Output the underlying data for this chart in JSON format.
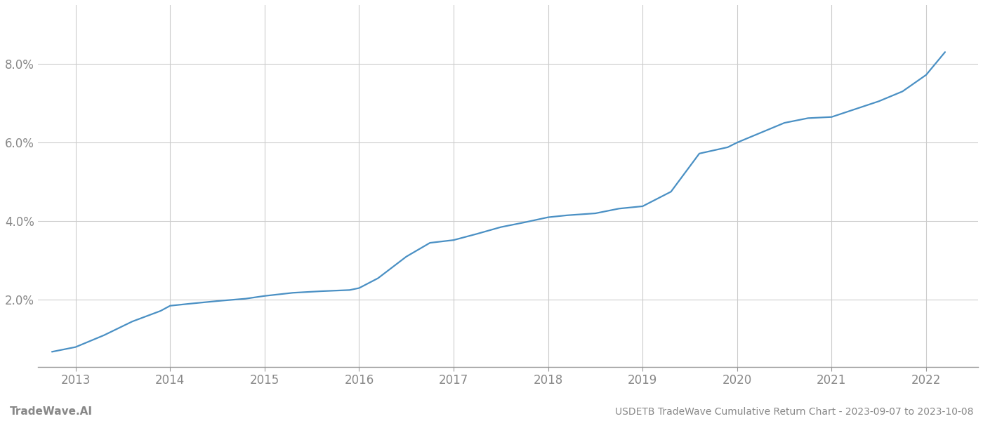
{
  "title": "USDETB TradeWave Cumulative Return Chart - 2023-09-07 to 2023-10-08",
  "watermark": "TradeWave.AI",
  "line_color": "#4a90c4",
  "background_color": "#ffffff",
  "grid_color": "#cccccc",
  "x_years": [
    2013,
    2014,
    2015,
    2016,
    2017,
    2018,
    2019,
    2020,
    2021,
    2022
  ],
  "x_values": [
    2012.75,
    2013.0,
    2013.3,
    2013.6,
    2013.9,
    2014.0,
    2014.2,
    2014.5,
    2014.8,
    2015.0,
    2015.3,
    2015.6,
    2015.9,
    2016.0,
    2016.2,
    2016.5,
    2016.75,
    2017.0,
    2017.25,
    2017.5,
    2017.75,
    2018.0,
    2018.2,
    2018.5,
    2018.75,
    2019.0,
    2019.3,
    2019.6,
    2019.9,
    2020.0,
    2020.25,
    2020.5,
    2020.75,
    2021.0,
    2021.25,
    2021.5,
    2021.75,
    2022.0,
    2022.2
  ],
  "y_values": [
    0.68,
    0.8,
    1.1,
    1.45,
    1.72,
    1.85,
    1.9,
    1.97,
    2.03,
    2.1,
    2.18,
    2.22,
    2.25,
    2.3,
    2.55,
    3.1,
    3.45,
    3.52,
    3.68,
    3.85,
    3.97,
    4.1,
    4.15,
    4.2,
    4.32,
    4.38,
    4.75,
    5.72,
    5.88,
    6.0,
    6.25,
    6.5,
    6.62,
    6.65,
    6.85,
    7.05,
    7.3,
    7.72,
    8.3
  ],
  "yticks": [
    2.0,
    4.0,
    6.0,
    8.0
  ],
  "ylim": [
    0.3,
    9.5
  ],
  "xlim": [
    2012.6,
    2022.55
  ],
  "title_fontsize": 10,
  "watermark_fontsize": 11,
  "tick_color": "#888888",
  "spine_color": "#999999",
  "line_width": 1.6
}
